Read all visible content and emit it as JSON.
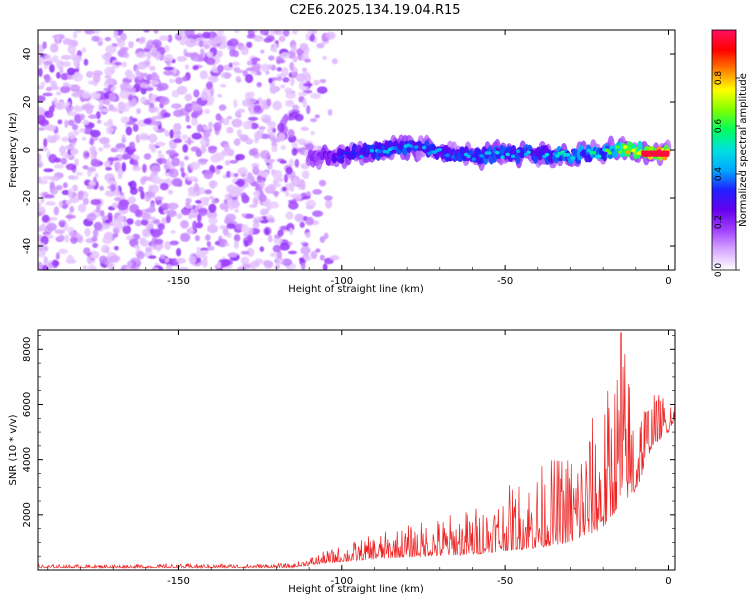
{
  "title": "C2E6.2025.134.19.04.R15",
  "chart_data": [
    {
      "type": "heatmap",
      "xlabel": "Height of straight line (km)",
      "ylabel": "Frequency (Hz)",
      "xlim": [
        -193,
        2
      ],
      "ylim": [
        -50,
        50
      ],
      "xticks": [
        -150,
        -100,
        -50,
        0
      ],
      "yticks": [
        -40,
        -20,
        0,
        20,
        40
      ],
      "colorbar": {
        "label": "Normalized spectral amplitude",
        "range": [
          0,
          1
        ],
        "ticks": [
          0,
          0.2,
          0.4,
          0.6,
          0.8
        ],
        "tick_labels": [
          "0.0",
          "0.2",
          "0.4",
          "0.6",
          "0.8"
        ],
        "colormap": [
          "#ffffff",
          "#d8a8ff",
          "#a040ff",
          "#6600ee",
          "#2020ff",
          "#00aaff",
          "#00e0e0",
          "#00ff60",
          "#80ff00",
          "#ffff00",
          "#ff8000",
          "#ff0000",
          "#ff1060"
        ]
      },
      "noise_region": {
        "x_range": [
          -193,
          -110
        ],
        "y_range": [
          -50,
          50
        ],
        "level": [
          0.05,
          0.2
        ]
      },
      "signal_track": [
        {
          "x": -110,
          "y": -2.5,
          "amp": 0.22
        },
        {
          "x": -100,
          "y": -2.5,
          "amp": 0.35
        },
        {
          "x": -90,
          "y": -0.5,
          "amp": 0.42
        },
        {
          "x": -80,
          "y": 1.5,
          "amp": 0.45
        },
        {
          "x": -70,
          "y": -1.0,
          "amp": 0.4
        },
        {
          "x": -60,
          "y": -2.5,
          "amp": 0.45
        },
        {
          "x": -50,
          "y": -1.5,
          "amp": 0.45
        },
        {
          "x": -40,
          "y": -1.5,
          "amp": 0.45
        },
        {
          "x": -30,
          "y": -2.5,
          "amp": 0.5
        },
        {
          "x": -20,
          "y": -1.0,
          "amp": 0.55
        },
        {
          "x": -12,
          "y": 0.5,
          "amp": 0.8
        },
        {
          "x": -5,
          "y": -1.5,
          "amp": 0.95
        },
        {
          "x": 0,
          "y": -1.5,
          "amp": 1.0
        }
      ],
      "color": "#ff0000"
    },
    {
      "type": "line",
      "xlabel": "Height of straight line (km)",
      "ylabel": "SNR (10 * v/v)",
      "xlim": [
        -193,
        2
      ],
      "ylim": [
        0,
        8700
      ],
      "xticks": [
        -150,
        -100,
        -50,
        0
      ],
      "yticks": [
        2000,
        4000,
        6000,
        8000
      ],
      "color": "#ee2222",
      "envelope": [
        {
          "x": -193,
          "base": 80,
          "peak": 200
        },
        {
          "x": -150,
          "base": 80,
          "peak": 220
        },
        {
          "x": -115,
          "base": 90,
          "peak": 240
        },
        {
          "x": -105,
          "base": 250,
          "peak": 700
        },
        {
          "x": -90,
          "base": 400,
          "peak": 1300
        },
        {
          "x": -75,
          "base": 500,
          "peak": 1800
        },
        {
          "x": -60,
          "base": 550,
          "peak": 2300
        },
        {
          "x": -50,
          "base": 700,
          "peak": 3000
        },
        {
          "x": -40,
          "base": 800,
          "peak": 3800
        },
        {
          "x": -30,
          "base": 1000,
          "peak": 4500
        },
        {
          "x": -20,
          "base": 1500,
          "peak": 6200
        },
        {
          "x": -14,
          "base": 2500,
          "peak": 8600
        },
        {
          "x": -10,
          "base": 2800,
          "peak": 6600
        },
        {
          "x": -5,
          "base": 4500,
          "peak": 6400
        },
        {
          "x": 0,
          "base": 5000,
          "peak": 6500
        },
        {
          "x": 2,
          "base": 5500,
          "peak": 6200
        }
      ],
      "annotations": [
        {
          "x": -14.5,
          "y": 8600,
          "label": ""
        }
      ]
    }
  ]
}
